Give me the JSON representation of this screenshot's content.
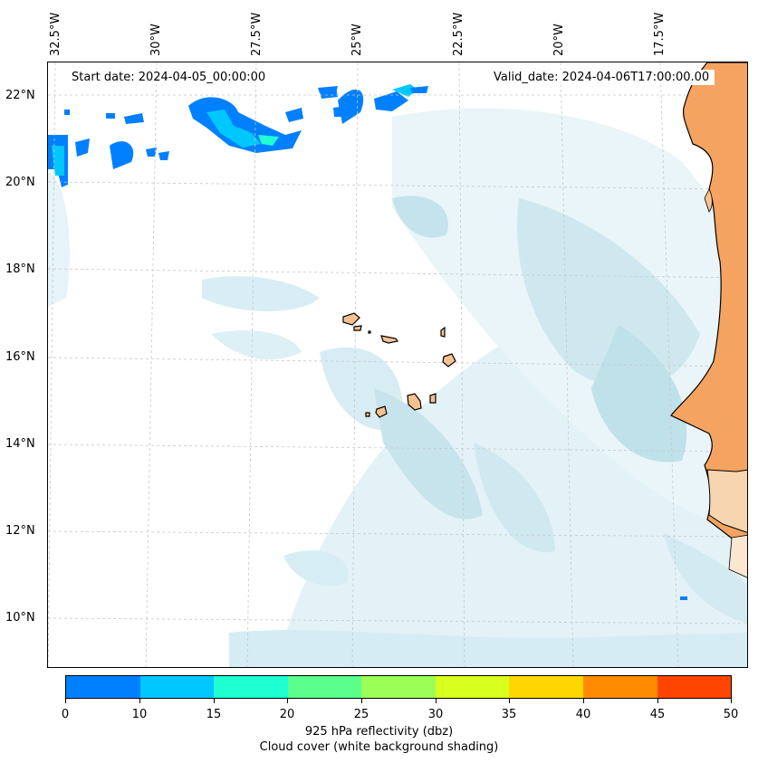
{
  "map": {
    "info": {
      "start_date": "Start date: 2024-04-05_00:00:00",
      "valid_date": "Valid_date: 2024-04-06T17:00:00.00"
    },
    "longitude_labels": [
      "32.5°W",
      "30°W",
      "27.5°W",
      "25°W",
      "22.5°W",
      "20°W",
      "17.5°W"
    ],
    "latitude_labels": [
      "22°N",
      "20°N",
      "18°N",
      "16°N",
      "14°N",
      "12°N",
      "10°N"
    ],
    "colors": {
      "land_africa": "#f4a460",
      "land_islands": "#f6c191",
      "cloud_light": "#e3f2f7",
      "cloud_dark": "#b4dde8",
      "coast_line": "#000000",
      "grid_line": "#c8c8c8"
    }
  },
  "colorbar": {
    "ticks": [
      "0",
      "10",
      "15",
      "20",
      "25",
      "30",
      "35",
      "40",
      "45",
      "50"
    ],
    "colors": [
      "#0080ff",
      "#00c8ff",
      "#1effd2",
      "#5aff8c",
      "#9bff57",
      "#d8ff1e",
      "#ffd700",
      "#ff8c00",
      "#ff4500"
    ],
    "label_line1": "925 hPa reflectivity (dbz)",
    "label_line2": "Cloud cover (white background shading)"
  }
}
